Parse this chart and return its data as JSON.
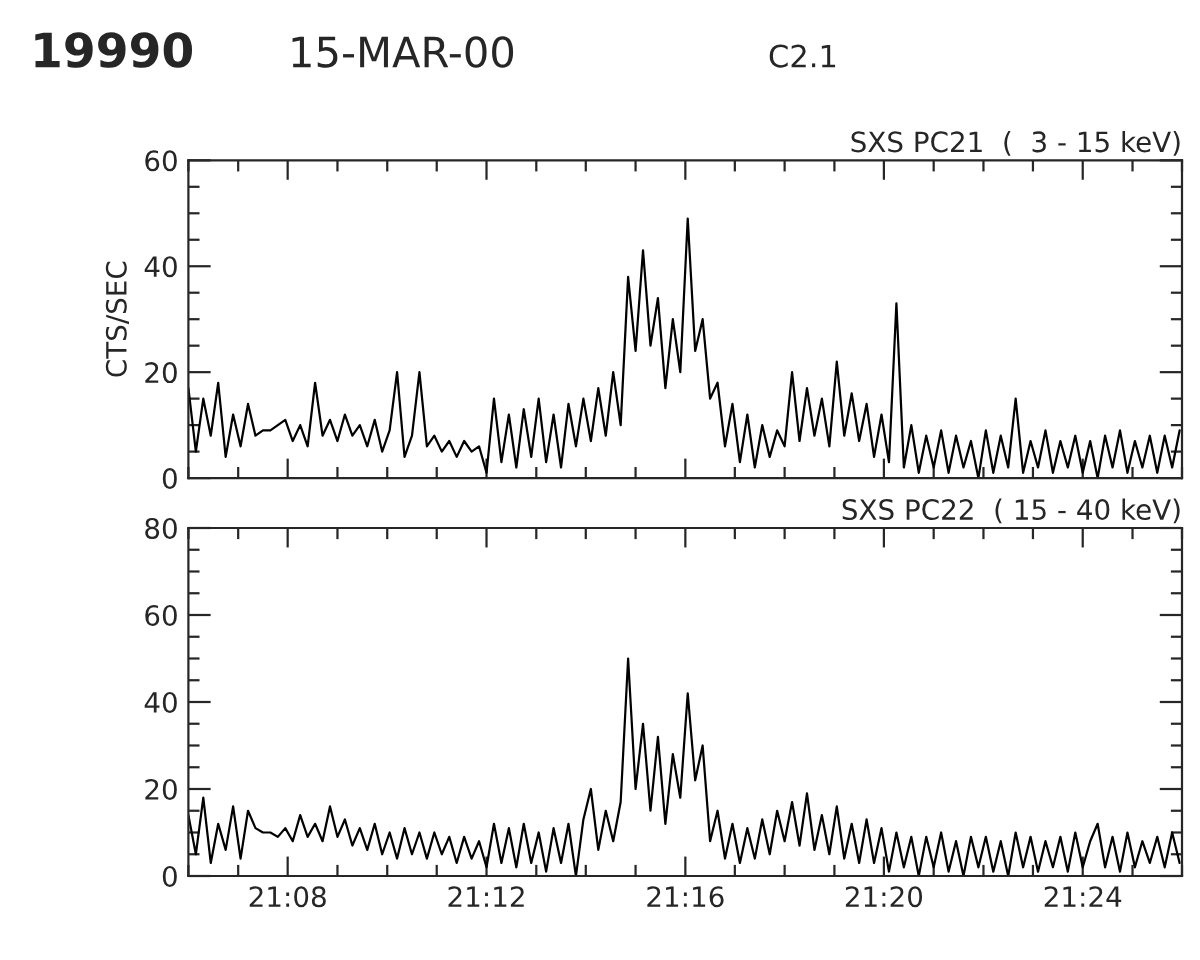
{
  "chart_data": [
    {
      "type": "line",
      "title": "SXS PC21  (  3 - 15 keV)",
      "ylabel": "CTS/SEC",
      "annotations": [
        "19990",
        "15-MAR-00",
        "C2.1"
      ],
      "x": [
        21.1,
        21.1025,
        21.105,
        21.1075,
        21.11,
        21.1125,
        21.115,
        21.1175,
        21.12,
        21.1225,
        21.125,
        21.1275,
        21.13,
        21.1325,
        21.135,
        21.1375,
        21.14,
        21.1425,
        21.145,
        21.1475,
        21.15,
        21.1525,
        21.155,
        21.1575,
        21.16,
        21.1625,
        21.165,
        21.1675,
        21.17,
        21.1725,
        21.175,
        21.1775,
        21.18,
        21.1825,
        21.185,
        21.1875,
        21.19,
        21.1925,
        21.195,
        21.1975,
        21.2,
        21.2025,
        21.205,
        21.2075,
        21.21,
        21.2125,
        21.215,
        21.2175,
        21.22,
        21.2225,
        21.225,
        21.2275,
        21.23,
        21.2325,
        21.235,
        21.2375,
        21.24,
        21.2425,
        21.245,
        21.2475,
        21.25,
        21.2525,
        21.255,
        21.2575,
        21.26,
        21.2625,
        21.265,
        21.2675,
        21.27,
        21.2725,
        21.275,
        21.2775,
        21.28,
        21.2825,
        21.285,
        21.2875,
        21.29,
        21.2925,
        21.295,
        21.2975,
        21.3,
        21.3025,
        21.305,
        21.3075,
        21.31,
        21.3125,
        21.315,
        21.3175,
        21.32,
        21.3225,
        21.325,
        21.3275,
        21.33,
        21.3325,
        21.335,
        21.3375,
        21.34,
        21.3425,
        21.345,
        21.3475,
        21.35,
        21.3525,
        21.355,
        21.3575,
        21.36,
        21.3625,
        21.365,
        21.3675,
        21.37,
        21.3725,
        21.375,
        21.3775,
        21.38,
        21.3825,
        21.385,
        21.3875,
        21.39,
        21.3925,
        21.395,
        21.3975,
        21.4,
        21.4025,
        21.405,
        21.4075,
        21.41,
        21.4125,
        21.415,
        21.4175,
        21.42,
        21.4225,
        21.425,
        21.4275,
        21.43,
        21.4325
      ],
      "series": [
        {
          "color": "#000000",
          "values": [
            17,
            5,
            15,
            8,
            18,
            4,
            12,
            6,
            14,
            8,
            9,
            9,
            10,
            11,
            7,
            10,
            6,
            18,
            8,
            11,
            7,
            12,
            8,
            10,
            6,
            11,
            5,
            9,
            20,
            4,
            8,
            20,
            6,
            8,
            5,
            7,
            4,
            7,
            5,
            6,
            1,
            15,
            3,
            12,
            2,
            13,
            4,
            15,
            3,
            12,
            2,
            14,
            6,
            15,
            7,
            17,
            8,
            20,
            10,
            38,
            24,
            43,
            25,
            34,
            17,
            30,
            20,
            49,
            24,
            30,
            15,
            18,
            6,
            14,
            3,
            12,
            2,
            10,
            4,
            9,
            6,
            20,
            7,
            17,
            8,
            15,
            6,
            22,
            8,
            16,
            7,
            14,
            4,
            12,
            3,
            33,
            2,
            10,
            1,
            8,
            2,
            9,
            1,
            8,
            2,
            7,
            0,
            9,
            1,
            8,
            2,
            15,
            1,
            7,
            2,
            9,
            1,
            7,
            2,
            8,
            1,
            7,
            0,
            8,
            2,
            9,
            1,
            7,
            2,
            8,
            1,
            8,
            2,
            9
          ]
        }
      ],
      "xlim": [
        21.1,
        21.4333
      ],
      "xticks": [
        {
          "value": 21.1,
          "label": null
        },
        {
          "value": 21.1167,
          "label": null
        },
        {
          "value": 21.1333,
          "label": null
        },
        {
          "value": 21.15,
          "label": null
        },
        {
          "value": 21.1667,
          "label": null
        },
        {
          "value": 21.1833,
          "label": null
        },
        {
          "value": 21.2,
          "label": null
        },
        {
          "value": 21.2167,
          "label": null
        },
        {
          "value": 21.2333,
          "label": null
        },
        {
          "value": 21.25,
          "label": null
        },
        {
          "value": 21.2667,
          "label": null
        },
        {
          "value": 21.2833,
          "label": null
        },
        {
          "value": 21.3,
          "label": null
        },
        {
          "value": 21.3167,
          "label": null
        },
        {
          "value": 21.3333,
          "label": null
        },
        {
          "value": 21.35,
          "label": null
        },
        {
          "value": 21.3667,
          "label": null
        },
        {
          "value": 21.3833,
          "label": null
        },
        {
          "value": 21.4,
          "label": null
        },
        {
          "value": 21.4167,
          "label": null
        },
        {
          "value": 21.4333,
          "label": null
        }
      ],
      "ylim": [
        0,
        60
      ],
      "yticks": [
        0,
        {
          "value": 5,
          "label": null
        },
        {
          "value": 10,
          "label": null
        },
        {
          "value": 15,
          "label": null
        },
        20,
        {
          "value": 25,
          "label": null
        },
        {
          "value": 30,
          "label": null
        },
        {
          "value": 35,
          "label": null
        },
        40,
        {
          "value": 45,
          "label": null
        },
        {
          "value": 50,
          "label": null
        },
        {
          "value": 55,
          "label": null
        },
        60
      ],
      "tick_labels": "y"
    },
    {
      "type": "line",
      "title": "SXS PC22  ( 15 - 40 keV)",
      "x": [
        21.1,
        21.1025,
        21.105,
        21.1075,
        21.11,
        21.1125,
        21.115,
        21.1175,
        21.12,
        21.1225,
        21.125,
        21.1275,
        21.13,
        21.1325,
        21.135,
        21.1375,
        21.14,
        21.1425,
        21.145,
        21.1475,
        21.15,
        21.1525,
        21.155,
        21.1575,
        21.16,
        21.1625,
        21.165,
        21.1675,
        21.17,
        21.1725,
        21.175,
        21.1775,
        21.18,
        21.1825,
        21.185,
        21.1875,
        21.19,
        21.1925,
        21.195,
        21.1975,
        21.2,
        21.2025,
        21.205,
        21.2075,
        21.21,
        21.2125,
        21.215,
        21.2175,
        21.22,
        21.2225,
        21.225,
        21.2275,
        21.23,
        21.2325,
        21.235,
        21.2375,
        21.24,
        21.2425,
        21.245,
        21.2475,
        21.25,
        21.2525,
        21.255,
        21.2575,
        21.26,
        21.2625,
        21.265,
        21.2675,
        21.27,
        21.2725,
        21.275,
        21.2775,
        21.28,
        21.2825,
        21.285,
        21.2875,
        21.29,
        21.2925,
        21.295,
        21.2975,
        21.3,
        21.3025,
        21.305,
        21.3075,
        21.31,
        21.3125,
        21.315,
        21.3175,
        21.32,
        21.3225,
        21.325,
        21.3275,
        21.33,
        21.3325,
        21.335,
        21.3375,
        21.34,
        21.3425,
        21.345,
        21.3475,
        21.35,
        21.3525,
        21.355,
        21.3575,
        21.36,
        21.3625,
        21.365,
        21.3675,
        21.37,
        21.3725,
        21.375,
        21.3775,
        21.38,
        21.3825,
        21.385,
        21.3875,
        21.39,
        21.3925,
        21.395,
        21.3975,
        21.4,
        21.4025,
        21.405,
        21.4075,
        21.41,
        21.4125,
        21.415,
        21.4175,
        21.42,
        21.4225,
        21.425,
        21.4275,
        21.43,
        21.4325
      ],
      "series": [
        {
          "color": "#000000",
          "values": [
            14,
            5,
            18,
            3,
            12,
            6,
            16,
            4,
            15,
            11,
            10,
            10,
            9,
            11,
            8,
            14,
            9,
            12,
            8,
            16,
            9,
            13,
            7,
            11,
            6,
            12,
            5,
            10,
            4,
            11,
            5,
            10,
            4,
            10,
            5,
            9,
            3,
            9,
            4,
            8,
            2,
            12,
            3,
            11,
            2,
            12,
            3,
            10,
            1,
            11,
            3,
            12,
            0,
            13,
            20,
            6,
            15,
            8,
            17,
            50,
            20,
            35,
            15,
            32,
            12,
            28,
            18,
            42,
            22,
            30,
            8,
            15,
            4,
            12,
            3,
            11,
            4,
            13,
            5,
            15,
            8,
            17,
            7,
            19,
            6,
            14,
            5,
            16,
            4,
            12,
            3,
            13,
            3,
            11,
            1,
            10,
            2,
            9,
            0,
            9,
            2,
            10,
            1,
            8,
            0,
            9,
            2,
            9,
            1,
            8,
            0,
            10,
            2,
            9,
            1,
            8,
            2,
            9,
            1,
            10,
            2,
            8,
            12,
            2,
            9,
            1,
            10,
            2,
            8,
            3,
            9,
            2,
            10,
            3
          ]
        }
      ],
      "xlim": [
        21.1,
        21.4333
      ],
      "xticks": [
        {
          "value": 21.1,
          "label": null
        },
        {
          "value": 21.1167,
          "label": null
        },
        {
          "value": 21.1333,
          "label": "21:08"
        },
        {
          "value": 21.15,
          "label": null
        },
        {
          "value": 21.1667,
          "label": null
        },
        {
          "value": 21.1833,
          "label": null
        },
        {
          "value": 21.2,
          "label": "21:12"
        },
        {
          "value": 21.2167,
          "label": null
        },
        {
          "value": 21.2333,
          "label": null
        },
        {
          "value": 21.25,
          "label": null
        },
        {
          "value": 21.2667,
          "label": "21:16"
        },
        {
          "value": 21.2833,
          "label": null
        },
        {
          "value": 21.3,
          "label": null
        },
        {
          "value": 21.3167,
          "label": null
        },
        {
          "value": 21.3333,
          "label": "21:20"
        },
        {
          "value": 21.35,
          "label": null
        },
        {
          "value": 21.3667,
          "label": null
        },
        {
          "value": 21.3833,
          "label": null
        },
        {
          "value": 21.4,
          "label": "21:24"
        },
        {
          "value": 21.4167,
          "label": null
        },
        {
          "value": 21.4333,
          "label": null
        }
      ],
      "ylim": [
        0,
        80
      ],
      "yticks": [
        0,
        {
          "value": 5,
          "label": null
        },
        {
          "value": 10,
          "label": null
        },
        {
          "value": 15,
          "label": null
        },
        20,
        {
          "value": 25,
          "label": null
        },
        {
          "value": 30,
          "label": null
        },
        {
          "value": 35,
          "label": null
        },
        40,
        {
          "value": 45,
          "label": null
        },
        {
          "value": 50,
          "label": null
        },
        {
          "value": 55,
          "label": null
        },
        60,
        {
          "value": 65,
          "label": null
        },
        {
          "value": 70,
          "label": null
        },
        {
          "value": 75,
          "label": null
        },
        80
      ]
    }
  ]
}
